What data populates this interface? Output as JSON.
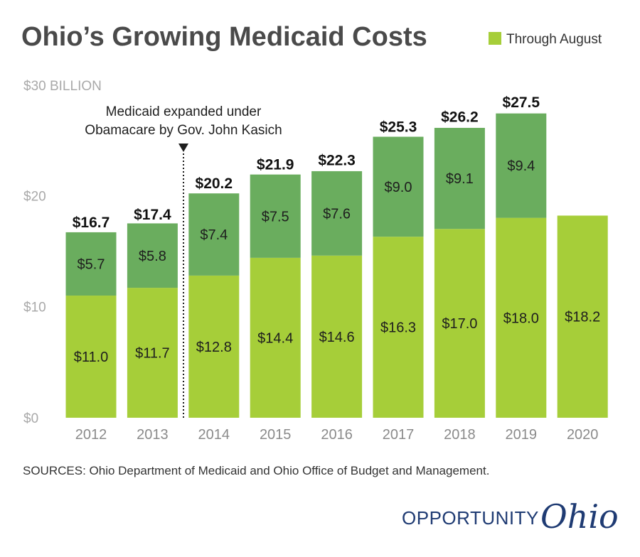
{
  "chart_data": {
    "type": "bar",
    "stacked": true,
    "title": "Ohio’s Growing Medicaid Costs",
    "categories": [
      "2012",
      "2013",
      "2014",
      "2015",
      "2016",
      "2017",
      "2018",
      "2019",
      "2020"
    ],
    "series": [
      {
        "name": "Through August",
        "color": "#a6ce39",
        "values": [
          11.0,
          11.7,
          12.8,
          14.4,
          14.6,
          16.3,
          17.0,
          18.0,
          18.2
        ],
        "labels": [
          "$11.0",
          "$11.7",
          "$12.8",
          "$14.4",
          "$14.6",
          "$16.3",
          "$17.0",
          "$18.0",
          "$18.2"
        ]
      },
      {
        "color": "#6aad5e",
        "values": [
          5.7,
          5.8,
          7.4,
          7.5,
          7.6,
          9.0,
          9.1,
          9.4,
          null
        ],
        "labels": [
          "$5.7",
          "$5.8",
          "$7.4",
          "$7.5",
          "$7.6",
          "$9.0",
          "$9.1",
          "$9.4",
          ""
        ]
      }
    ],
    "totals": [
      16.7,
      17.4,
      20.2,
      21.9,
      22.3,
      25.3,
      26.2,
      27.5,
      null
    ],
    "total_labels": [
      "$16.7",
      "$17.4",
      "$20.2",
      "$21.9",
      "$22.3",
      "$25.3",
      "$26.2",
      "$27.5",
      ""
    ],
    "ylim": [
      0,
      30
    ],
    "yticks": [
      0,
      10,
      20,
      30
    ],
    "ytick_labels": [
      "$0",
      "$10",
      "$20",
      "$30 BILLION"
    ],
    "grid": false,
    "legend_placement": "top-right",
    "annotation": {
      "text_lines": [
        "Medicaid expanded under",
        "Obamacare by Gov. John Kasich"
      ],
      "between_categories": [
        "2013",
        "2014"
      ]
    }
  },
  "source_text": "SOURCES: Ohio Department of Medicaid and Ohio Office of Budget and Management.",
  "logo": {
    "word": "OPPORTUNITY",
    "script": "Ohio"
  }
}
